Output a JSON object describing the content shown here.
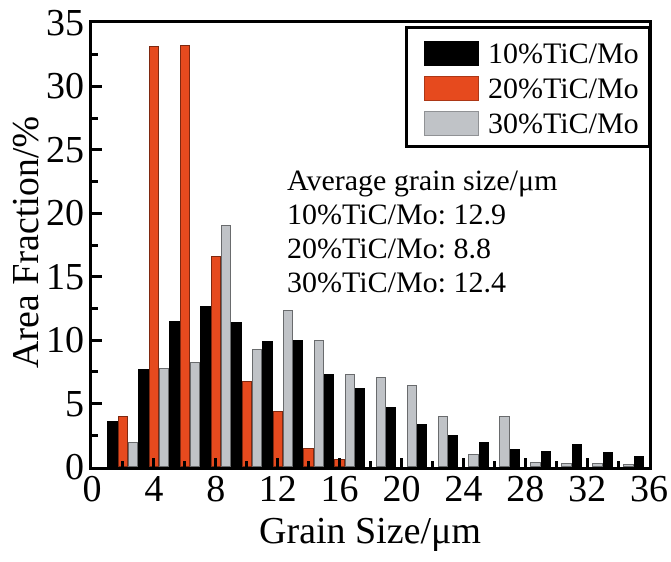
{
  "chart_data": {
    "type": "bar",
    "title": "",
    "xlabel": "Grain Size/μm",
    "ylabel": "Area Fraction/%",
    "xlim": [
      0,
      36
    ],
    "ylim": [
      0,
      35
    ],
    "bin_width": 2,
    "x_major_ticks": [
      0,
      4,
      8,
      12,
      16,
      20,
      24,
      28,
      32,
      36
    ],
    "y_major_ticks": [
      0,
      5,
      10,
      15,
      20,
      25,
      30,
      35
    ],
    "x_minor_step": 2,
    "y_minor_step": 2.5,
    "y_major_step": 5,
    "grid": false,
    "legend_position": "top-right",
    "categories": [
      2,
      4,
      6,
      8,
      10,
      12,
      14,
      16,
      18,
      20,
      22,
      24,
      26,
      28,
      30,
      32,
      34,
      36
    ],
    "series": [
      {
        "name": "10%TiC/Mo",
        "color": "#000000",
        "values": [
          3.6,
          7.7,
          11.5,
          12.7,
          11.4,
          9.9,
          10.0,
          7.3,
          6.2,
          4.7,
          3.4,
          2.5,
          2.0,
          1.4,
          1.3,
          1.8,
          1.2,
          0.9
        ]
      },
      {
        "name": "20%TiC/Mo",
        "color": "#E64A1E",
        "values": [
          4.0,
          33.2,
          33.3,
          16.6,
          6.8,
          4.4,
          1.5,
          0.6,
          0,
          0,
          0,
          0,
          0,
          0,
          0,
          0,
          0,
          0
        ]
      },
      {
        "name": "30%TiC/Mo",
        "color": "#C0C3C7",
        "values": [
          2.0,
          7.8,
          8.3,
          19.1,
          9.3,
          12.4,
          10.0,
          7.3,
          7.1,
          6.5,
          4.0,
          1.0,
          4.0,
          0.4,
          0.3,
          0.3,
          0.2,
          0
        ]
      }
    ]
  },
  "annotation": {
    "lines": [
      "Average grain size/μm",
      "10%TiC/Mo: 12.9",
      "20%TiC/Mo: 8.8",
      "30%TiC/Mo: 12.4"
    ]
  }
}
